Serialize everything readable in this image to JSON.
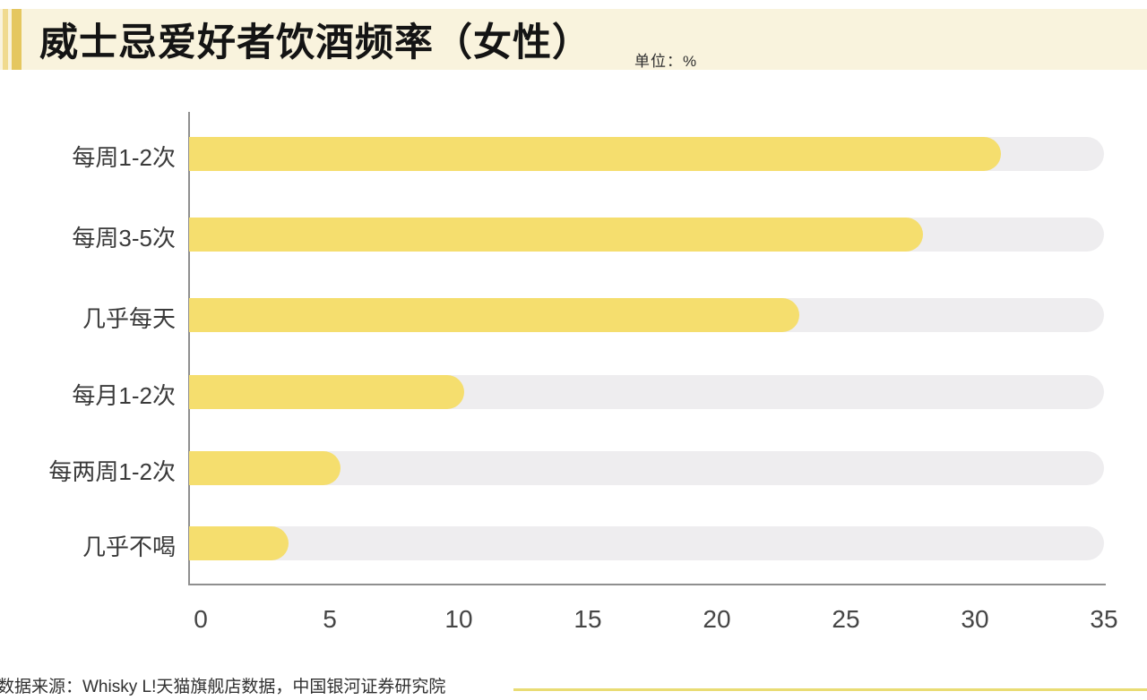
{
  "header": {
    "title": "威士忌爱好者饮酒频率（女性）",
    "unit_label": "单位：%",
    "band_color": "#F9F3DD",
    "accent_light_color": "#F0DA8E",
    "accent_gold_color": "#E5C75F"
  },
  "chart_data": {
    "type": "bar",
    "orientation": "horizontal",
    "title": "威士忌爱好者饮酒频率（女性）",
    "unit": "%",
    "categories": [
      "每周1-2次",
      "每周3-5次",
      "几乎每天",
      "每月1-2次",
      "每两周1-2次",
      "几乎不喝"
    ],
    "values": [
      31.0,
      28.0,
      23.2,
      10.2,
      5.4,
      3.4
    ],
    "x_ticks": [
      0,
      5,
      10,
      15,
      20,
      25,
      30,
      35
    ],
    "xlim": [
      0,
      35
    ],
    "track_max": 35,
    "bar_color": "#F5DE6E",
    "track_color": "#EEEDEF",
    "axis_color": "#8F8F8F",
    "grid": "off",
    "legend": "none"
  },
  "footer": {
    "source_text": "数据来源：Whisky L!天猫旗舰店数据，中国银河证券研究院",
    "divider_color": "#E9DC74"
  }
}
